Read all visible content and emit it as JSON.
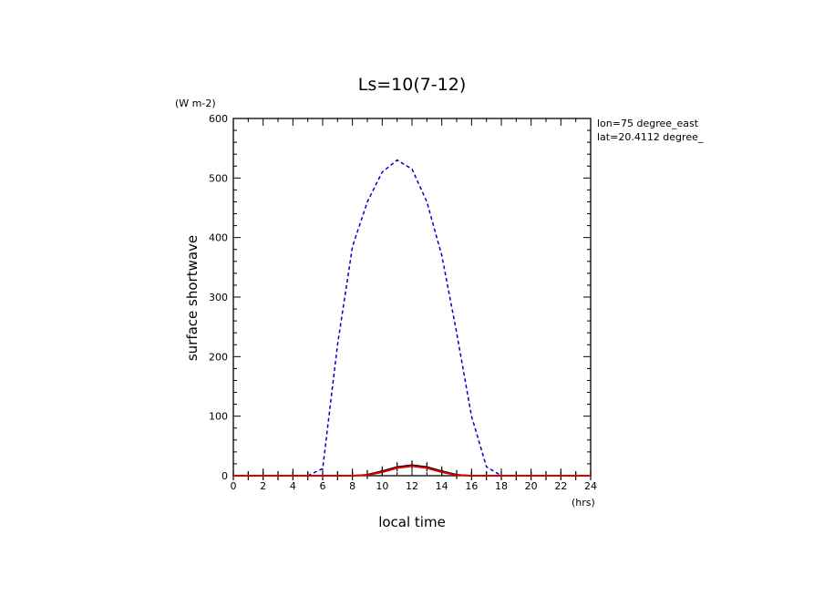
{
  "chart_data": {
    "type": "line",
    "title": "Ls=10(7-12)",
    "xlabel": "local time",
    "xunit": "(hrs)",
    "ylabel": "surface shortwave",
    "yunit": "(W m-2)",
    "xlim": [
      0,
      24
    ],
    "ylim": [
      0,
      600
    ],
    "xticks": [
      0,
      2,
      4,
      6,
      8,
      10,
      12,
      14,
      16,
      18,
      20,
      22,
      24
    ],
    "yticks": [
      0,
      100,
      200,
      300,
      400,
      500,
      600
    ],
    "annotations": [
      "lon=75 degree_east",
      "lat=20.4112 degree_"
    ],
    "colors": {
      "series1": "#0000cc",
      "series2": "#000000",
      "series3": "#dd0000"
    },
    "series": [
      {
        "style": "dashed",
        "x": [
          5,
          6,
          7,
          8,
          9,
          10,
          11,
          12,
          13,
          14,
          15,
          16,
          17,
          18,
          19
        ],
        "values": [
          0,
          12,
          220,
          385,
          460,
          510,
          530,
          515,
          460,
          370,
          240,
          100,
          15,
          0,
          0
        ]
      },
      {
        "style": "solid-with-markers",
        "x": [
          0,
          1,
          2,
          3,
          4,
          5,
          6,
          7,
          8,
          9,
          10,
          11,
          12,
          13,
          14,
          15,
          16,
          17,
          18,
          19,
          20,
          21,
          22,
          23,
          24
        ],
        "values": [
          0,
          0,
          0,
          0,
          0,
          0,
          0,
          0,
          0,
          2,
          8,
          15,
          18,
          15,
          8,
          2,
          0,
          0,
          0,
          0,
          0,
          0,
          0,
          0,
          0
        ]
      },
      {
        "style": "solid",
        "x": [
          0,
          1,
          2,
          3,
          4,
          5,
          6,
          7,
          8,
          9,
          10,
          11,
          12,
          13,
          14,
          15,
          16,
          17,
          18,
          19,
          20,
          21,
          22,
          23,
          24
        ],
        "values": [
          0,
          0,
          0,
          0,
          0,
          0,
          0,
          0,
          0,
          1,
          6,
          13,
          16,
          13,
          6,
          1,
          0,
          0,
          0,
          0,
          0,
          0,
          0,
          0,
          0
        ]
      }
    ]
  }
}
